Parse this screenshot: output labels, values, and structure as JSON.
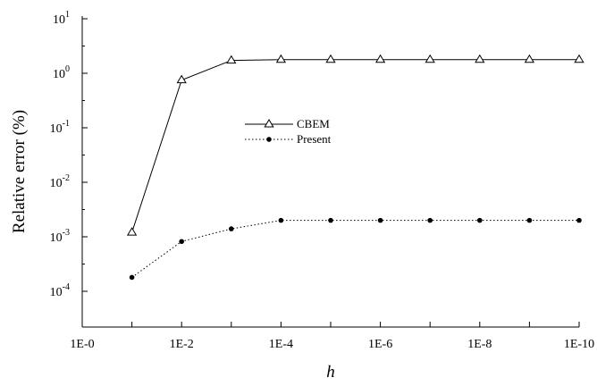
{
  "chart_data": {
    "type": "line",
    "xlabel": "h",
    "ylabel": "Relative error (%)",
    "x_ticks": [
      "1E-0",
      "1E-2",
      "1E-4",
      "1E-6",
      "1E-8",
      "1E-10"
    ],
    "x": [
      0.1,
      0.01,
      0.001,
      0.0001,
      1e-05,
      1e-06,
      1e-07,
      1e-08,
      1e-09,
      1e-10
    ],
    "xlim": [
      1,
      1e-10
    ],
    "xscale": "log",
    "yscale": "log",
    "ylim": [
      1e-05,
      10
    ],
    "y_ticks": [
      {
        "base": "10",
        "exp": "1"
      },
      {
        "base": "10",
        "exp": "0"
      },
      {
        "base": "10",
        "exp": "-1"
      },
      {
        "base": "10",
        "exp": "-2"
      },
      {
        "base": "10",
        "exp": "-3"
      },
      {
        "base": "10",
        "exp": "-4"
      }
    ],
    "grid": false,
    "legend_position": "center",
    "series": [
      {
        "name": "CBEM",
        "line": "solid",
        "marker": "open-triangle",
        "color": "#000000",
        "values": [
          0.0012,
          0.75,
          1.72,
          1.78,
          1.78,
          1.78,
          1.78,
          1.78,
          1.78,
          1.78
        ]
      },
      {
        "name": "Present",
        "line": "dotted",
        "marker": "filled-circle",
        "color": "#000000",
        "values": [
          0.00018,
          0.00082,
          0.0014,
          0.002,
          0.002,
          0.002,
          0.002,
          0.002,
          0.002,
          0.002
        ]
      }
    ]
  }
}
